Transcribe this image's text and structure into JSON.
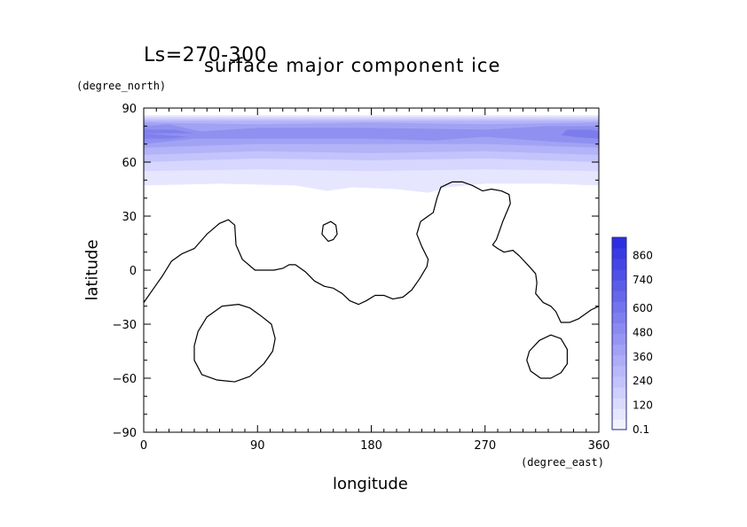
{
  "header": {
    "period_label": "Ls=270-300",
    "title": "surface major component ice"
  },
  "chart_data": {
    "type": "contour-map",
    "title": "surface major component ice",
    "subtitle": "Ls=270-300",
    "xlabel": "longitude",
    "ylabel": "latitude",
    "x_unit": "(degree_east)",
    "y_unit": "(degree_north)",
    "xlim": [
      0,
      360
    ],
    "ylim": [
      -90,
      90
    ],
    "x_ticks": [
      "0",
      "90",
      "180",
      "270",
      "360"
    ],
    "x_tick_values": [
      0,
      90,
      180,
      270,
      360
    ],
    "y_ticks": [
      "90",
      "60",
      "30",
      "0",
      "−30",
      "−60",
      "−90"
    ],
    "y_tick_values": [
      90,
      60,
      30,
      0,
      -30,
      -60,
      -90
    ],
    "colorbar": {
      "tick_labels": [
        "0.1",
        "120",
        "240",
        "360",
        "480",
        "600",
        "740",
        "860"
      ],
      "tick_values": [
        0.1,
        120,
        240,
        360,
        480,
        600,
        740,
        860
      ],
      "colors": [
        "#f2f2ff",
        "#e6e6ff",
        "#dadaff",
        "#cfcffd",
        "#c3c3fb",
        "#b8b8f9",
        "#acacf7",
        "#a1a1f5",
        "#9595f3",
        "#8a8af1",
        "#7e7eef",
        "#7373ed",
        "#6767eb",
        "#5c5ce9",
        "#5050e7",
        "#4545e5",
        "#3a3ae3",
        "#2e2ee1"
      ]
    },
    "ice_bands": [
      {
        "level": 0.1,
        "color": "#e6e6ff",
        "top": [
          [
            0,
            86
          ],
          [
            360,
            86
          ]
        ],
        "bottom": [
          [
            0,
            47
          ],
          [
            60,
            48
          ],
          [
            120,
            47
          ],
          [
            145,
            44
          ],
          [
            165,
            46
          ],
          [
            200,
            45
          ],
          [
            225,
            43
          ],
          [
            240,
            46
          ],
          [
            270,
            48
          ],
          [
            320,
            48
          ],
          [
            360,
            47
          ]
        ]
      },
      {
        "level": 120,
        "color": "#d6d6ff",
        "top": [
          [
            0,
            85
          ],
          [
            360,
            85
          ]
        ],
        "bottom": [
          [
            0,
            55
          ],
          [
            90,
            56
          ],
          [
            180,
            55
          ],
          [
            270,
            56
          ],
          [
            360,
            55
          ]
        ]
      },
      {
        "level": 240,
        "color": "#c4c4fc",
        "top": [
          [
            0,
            84
          ],
          [
            360,
            84
          ]
        ],
        "bottom": [
          [
            0,
            60
          ],
          [
            90,
            62
          ],
          [
            180,
            61
          ],
          [
            270,
            62
          ],
          [
            360,
            60
          ]
        ]
      },
      {
        "level": 360,
        "color": "#b3b3f8",
        "top": [
          [
            0,
            83
          ],
          [
            360,
            83
          ]
        ],
        "bottom": [
          [
            0,
            64
          ],
          [
            90,
            66
          ],
          [
            180,
            65
          ],
          [
            270,
            66
          ],
          [
            360,
            64
          ]
        ]
      },
      {
        "level": 480,
        "color": "#a2a2f5",
        "top": [
          [
            0,
            82
          ],
          [
            90,
            81
          ],
          [
            180,
            82
          ],
          [
            270,
            81
          ],
          [
            360,
            82
          ]
        ],
        "bottom": [
          [
            0,
            68
          ],
          [
            90,
            70
          ],
          [
            180,
            70
          ],
          [
            270,
            70
          ],
          [
            360,
            68
          ]
        ]
      },
      {
        "level": 600,
        "color": "#9090f1",
        "top": [
          [
            0,
            80
          ],
          [
            20,
            81
          ],
          [
            45,
            77
          ],
          [
            90,
            79
          ],
          [
            180,
            79
          ],
          [
            270,
            78
          ],
          [
            320,
            80
          ],
          [
            360,
            80
          ]
        ],
        "bottom": [
          [
            0,
            70
          ],
          [
            40,
            73
          ],
          [
            90,
            73
          ],
          [
            180,
            73
          ],
          [
            230,
            72
          ],
          [
            270,
            74
          ],
          [
            330,
            71
          ],
          [
            360,
            70
          ]
        ]
      },
      {
        "level": 740,
        "color": "#8080ed",
        "top": [
          [
            0,
            78
          ],
          [
            25,
            78
          ],
          [
            40,
            76
          ],
          [
            0,
            76
          ]
        ],
        "bottom": [
          [
            0,
            73
          ],
          [
            20,
            73
          ],
          [
            35,
            74
          ],
          [
            0,
            74
          ]
        ]
      },
      {
        "level": 860,
        "color": "#7c7cec",
        "top": [
          [
            335,
            78
          ],
          [
            355,
            78
          ],
          [
            360,
            77
          ]
        ],
        "bottom": [
          [
            360,
            73
          ],
          [
            340,
            74
          ],
          [
            330,
            75
          ]
        ]
      }
    ],
    "coastlines": [
      {
        "name": "main",
        "closed": false,
        "points": [
          [
            0,
            -18
          ],
          [
            8,
            -10
          ],
          [
            15,
            -3
          ],
          [
            22,
            5
          ],
          [
            30,
            9
          ],
          [
            40,
            12
          ],
          [
            50,
            20
          ],
          [
            60,
            26
          ],
          [
            67,
            28
          ],
          [
            72,
            25
          ],
          [
            73,
            14
          ],
          [
            78,
            6
          ],
          [
            88,
            0
          ],
          [
            103,
            0
          ],
          [
            110,
            1
          ],
          [
            115,
            3
          ],
          [
            120,
            3
          ],
          [
            128,
            -1
          ],
          [
            135,
            -6
          ],
          [
            143,
            -9
          ],
          [
            150,
            -10
          ],
          [
            157,
            -13
          ],
          [
            163,
            -17
          ],
          [
            170,
            -19
          ],
          [
            176,
            -17
          ],
          [
            183,
            -14
          ],
          [
            190,
            -14
          ],
          [
            197,
            -16
          ],
          [
            205,
            -15
          ],
          [
            212,
            -11
          ],
          [
            218,
            -5
          ],
          [
            224,
            2
          ],
          [
            225,
            6
          ],
          [
            220,
            13
          ],
          [
            216,
            20
          ],
          [
            219,
            27
          ],
          [
            225,
            30
          ],
          [
            229,
            32
          ],
          [
            232,
            40
          ],
          [
            235,
            46
          ],
          [
            244,
            49
          ],
          [
            252,
            49
          ],
          [
            260,
            47
          ],
          [
            268,
            44
          ],
          [
            275,
            45
          ],
          [
            283,
            44
          ],
          [
            289,
            42
          ],
          [
            290,
            37
          ],
          [
            284,
            27
          ],
          [
            279,
            17
          ],
          [
            276,
            14
          ],
          [
            280,
            12
          ],
          [
            285,
            10
          ],
          [
            292,
            11
          ],
          [
            297,
            8
          ],
          [
            305,
            2
          ],
          [
            310,
            -2
          ],
          [
            311,
            -7
          ],
          [
            310,
            -13
          ],
          [
            316,
            -18
          ],
          [
            322,
            -20
          ],
          [
            326,
            -23
          ],
          [
            330,
            -29
          ],
          [
            337,
            -29
          ],
          [
            344,
            -27
          ],
          [
            354,
            -22
          ],
          [
            360,
            -20
          ]
        ]
      },
      {
        "name": "island-north",
        "closed": true,
        "points": [
          [
            141,
            20
          ],
          [
            142,
            25
          ],
          [
            148,
            27
          ],
          [
            152,
            25
          ],
          [
            153,
            20
          ],
          [
            150,
            17
          ],
          [
            146,
            16
          ]
        ]
      },
      {
        "name": "basin-west",
        "closed": true,
        "points": [
          [
            40,
            -42
          ],
          [
            40,
            -50
          ],
          [
            46,
            -58
          ],
          [
            58,
            -61
          ],
          [
            72,
            -62
          ],
          [
            84,
            -59
          ],
          [
            95,
            -52
          ],
          [
            102,
            -45
          ],
          [
            104,
            -38
          ],
          [
            101,
            -30
          ],
          [
            92,
            -25
          ],
          [
            84,
            -21
          ],
          [
            75,
            -19
          ],
          [
            62,
            -20
          ],
          [
            50,
            -26
          ],
          [
            43,
            -34
          ]
        ]
      },
      {
        "name": "basin-east",
        "closed": true,
        "points": [
          [
            303,
            -50
          ],
          [
            306,
            -56
          ],
          [
            314,
            -60
          ],
          [
            322,
            -60
          ],
          [
            330,
            -57
          ],
          [
            335,
            -52
          ],
          [
            335,
            -44
          ],
          [
            330,
            -38
          ],
          [
            322,
            -36
          ],
          [
            313,
            -39
          ],
          [
            305,
            -45
          ]
        ]
      }
    ]
  }
}
